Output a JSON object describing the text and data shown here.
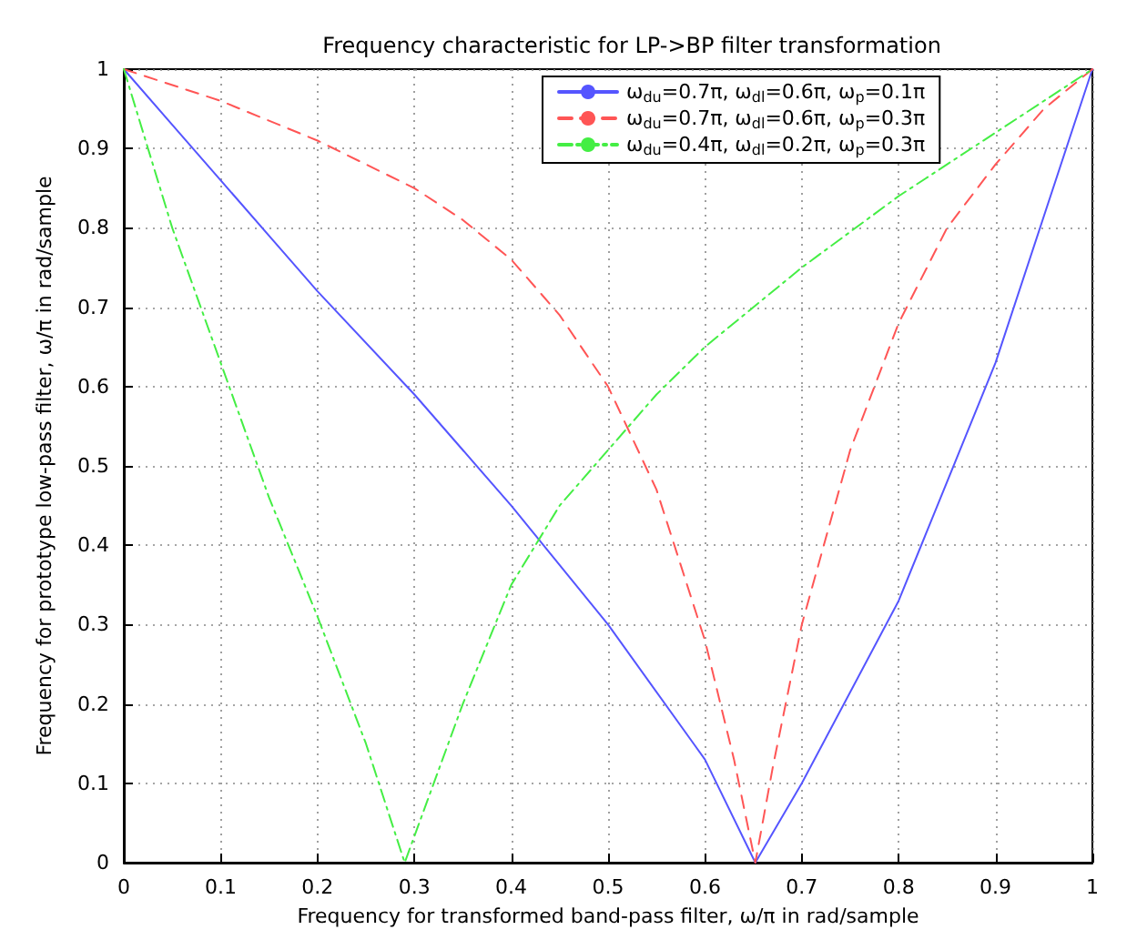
{
  "chart_data": {
    "type": "line",
    "title": "Frequency characteristic for LP->BP filter transformation",
    "xlabel": "Frequency for transformed band-pass filter, ω/π in rad/sample",
    "ylabel": "Frequency for prototype low-pass filter, ω/π in rad/sample",
    "xlim": [
      0,
      1
    ],
    "ylim": [
      0,
      1
    ],
    "xticks": [
      0,
      0.1,
      0.2,
      0.3,
      0.4,
      0.5,
      0.6,
      0.7,
      0.8,
      0.9,
      1
    ],
    "yticks": [
      0,
      0.1,
      0.2,
      0.3,
      0.4,
      0.5,
      0.6,
      0.7,
      0.8,
      0.9,
      1
    ],
    "grid": true,
    "legend": "top",
    "marker": "none",
    "series": [
      {
        "name": "ω$_{du}$=0.7π, ω$_{dl}$=0.6π, ω$_{p}$=0.1π",
        "color": "#5555ff",
        "line_style": "solid",
        "x": [
          0,
          0.05,
          0.1,
          0.15,
          0.2,
          0.3,
          0.4,
          0.5,
          0.6,
          0.652,
          0.7,
          0.8,
          0.9,
          1
        ],
        "values": [
          1,
          0.93,
          0.86,
          0.79,
          0.72,
          0.59,
          0.45,
          0.3,
          0.13,
          0,
          0.1,
          0.33,
          0.63,
          1
        ]
      },
      {
        "name": "ω$_{du}$=0.7π, ω$_{dl}$=0.6π, ω$_{p}$=0.3π",
        "color": "#ff5555",
        "line_style": "dashed",
        "x": [
          0,
          0.1,
          0.2,
          0.3,
          0.35,
          0.4,
          0.45,
          0.5,
          0.55,
          0.6,
          0.63,
          0.652,
          0.67,
          0.7,
          0.75,
          0.8,
          0.85,
          0.9,
          0.95,
          1
        ],
        "values": [
          1,
          0.96,
          0.91,
          0.85,
          0.81,
          0.76,
          0.69,
          0.6,
          0.47,
          0.28,
          0.13,
          0,
          0.12,
          0.3,
          0.52,
          0.68,
          0.8,
          0.88,
          0.95,
          1
        ]
      },
      {
        "name": "ω$_{du}$=0.4π, ω$_{dl}$=0.2π, ω$_{p}$=0.3π",
        "color": "#44ee44",
        "line_style": "dashdot",
        "x": [
          0,
          0.05,
          0.1,
          0.15,
          0.2,
          0.25,
          0.29,
          0.35,
          0.4,
          0.45,
          0.5,
          0.55,
          0.6,
          0.7,
          0.8,
          0.9,
          1
        ],
        "values": [
          1,
          0.8,
          0.63,
          0.46,
          0.31,
          0.15,
          0,
          0.2,
          0.35,
          0.45,
          0.52,
          0.59,
          0.65,
          0.75,
          0.84,
          0.92,
          1
        ]
      }
    ]
  }
}
